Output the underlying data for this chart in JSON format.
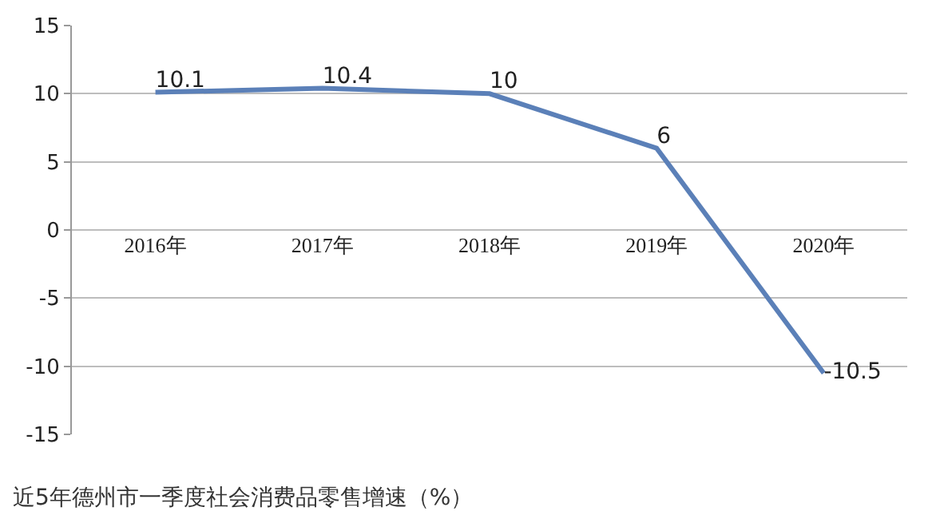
{
  "chart_data": {
    "type": "line",
    "title": "近5年德州市一季度社会消费品零售增速（%）",
    "categories": [
      "2016年",
      "2017年",
      "2018年",
      "2019年",
      "2020年"
    ],
    "values": [
      10.1,
      10.4,
      10,
      6,
      -10.5
    ],
    "color": "#5b80b8",
    "ylim": [
      -15,
      15
    ],
    "yticks": [
      -15,
      -10,
      -5,
      0,
      5,
      10,
      15
    ],
    "grid": "y",
    "data_labels": true,
    "marker": "none",
    "line_style": "solid",
    "legend": false
  }
}
